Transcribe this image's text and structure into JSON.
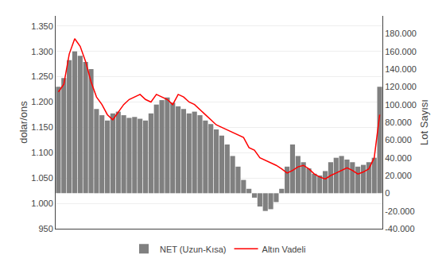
{
  "chart_data": {
    "type": "bar",
    "categories": [
      null,
      null,
      null,
      null,
      null,
      null,
      null,
      null,
      null,
      null,
      null,
      null,
      null,
      null,
      null,
      null,
      null,
      null,
      null,
      null,
      null,
      null,
      null,
      null,
      null,
      null,
      null,
      null,
      null,
      null,
      null,
      null,
      null,
      null,
      null,
      null,
      null,
      null,
      null,
      null,
      null,
      null,
      null,
      null,
      null,
      null,
      null,
      null,
      null,
      null,
      null,
      null,
      null,
      null,
      null,
      null,
      null,
      null,
      null,
      null
    ],
    "series": [
      {
        "name": "NET (Uzun-Kısa)",
        "type": "bar",
        "color": "#808080",
        "axis": "y2",
        "values": [
          120000,
          130000,
          150000,
          160000,
          155000,
          148000,
          140000,
          95000,
          88000,
          82000,
          90000,
          92000,
          88000,
          85000,
          86000,
          84000,
          82000,
          90000,
          100000,
          105000,
          108000,
          102000,
          98000,
          95000,
          90000,
          92000,
          88000,
          82000,
          78000,
          72000,
          65000,
          55000,
          42000,
          30000,
          15000,
          5000,
          -5000,
          -15000,
          -20000,
          -18000,
          -10000,
          5000,
          30000,
          55000,
          42000,
          35000,
          28000,
          22000,
          20000,
          25000,
          35000,
          40000,
          42000,
          38000,
          35000,
          30000,
          32000,
          35000,
          40000,
          120000
        ]
      },
      {
        "name": "Altın Vadeli",
        "type": "line",
        "color": "#FF0000",
        "values": [
          1.22,
          1.235,
          1.295,
          1.325,
          1.31,
          1.28,
          1.24,
          1.21,
          1.195,
          1.175,
          1.165,
          1.18,
          1.195,
          1.205,
          1.21,
          1.215,
          1.205,
          1.2,
          1.215,
          1.21,
          1.205,
          1.195,
          1.215,
          1.21,
          1.2,
          1.195,
          1.185,
          1.175,
          1.165,
          1.155,
          1.15,
          1.145,
          1.14,
          1.135,
          1.13,
          1.11,
          1.105,
          1.09,
          1.085,
          1.08,
          1.075,
          1.068,
          1.06,
          1.065,
          1.072,
          1.075,
          1.068,
          1.058,
          1.052,
          1.048,
          1.055,
          1.06,
          1.065,
          1.07,
          1.065,
          1.058,
          1.062,
          1.068,
          1.09,
          1.175
        ]
      }
    ],
    "ylabel": "dolar/ons",
    "y2label": "Lot Sayısı",
    "ylim": [
      0.95,
      1.37
    ],
    "yticks": [
      {
        "value": 0.95,
        "label": "950"
      },
      {
        "value": 1.0,
        "label": "1.000"
      },
      {
        "value": 1.05,
        "label": "1.050"
      },
      {
        "value": 1.1,
        "label": "1.100"
      },
      {
        "value": 1.15,
        "label": "1.150"
      },
      {
        "value": 1.2,
        "label": "1.200"
      },
      {
        "value": 1.25,
        "label": "1.250"
      },
      {
        "value": 1.3,
        "label": "1.300"
      },
      {
        "value": 1.35,
        "label": "1.350"
      }
    ],
    "y2lim": [
      -40000,
      200000
    ],
    "y2ticks": [
      {
        "value": -40000,
        "label": "-40.000"
      },
      {
        "value": -20000,
        "label": "-20.000"
      },
      0,
      {
        "value": 20000,
        "label": "20.000"
      },
      {
        "value": 40000,
        "label": "40.000"
      },
      {
        "value": 60000,
        "label": "60.000"
      },
      {
        "value": 80000,
        "label": "80.000"
      },
      {
        "value": 100000,
        "label": "100.000"
      },
      {
        "value": 120000,
        "label": "120.000"
      },
      {
        "value": 140000,
        "label": "140.000"
      },
      {
        "value": 160000,
        "label": "160.000"
      },
      {
        "value": 180000,
        "label": "180.000"
      }
    ],
    "grid": true,
    "legend": "bottom",
    "tick_labels": "y"
  }
}
